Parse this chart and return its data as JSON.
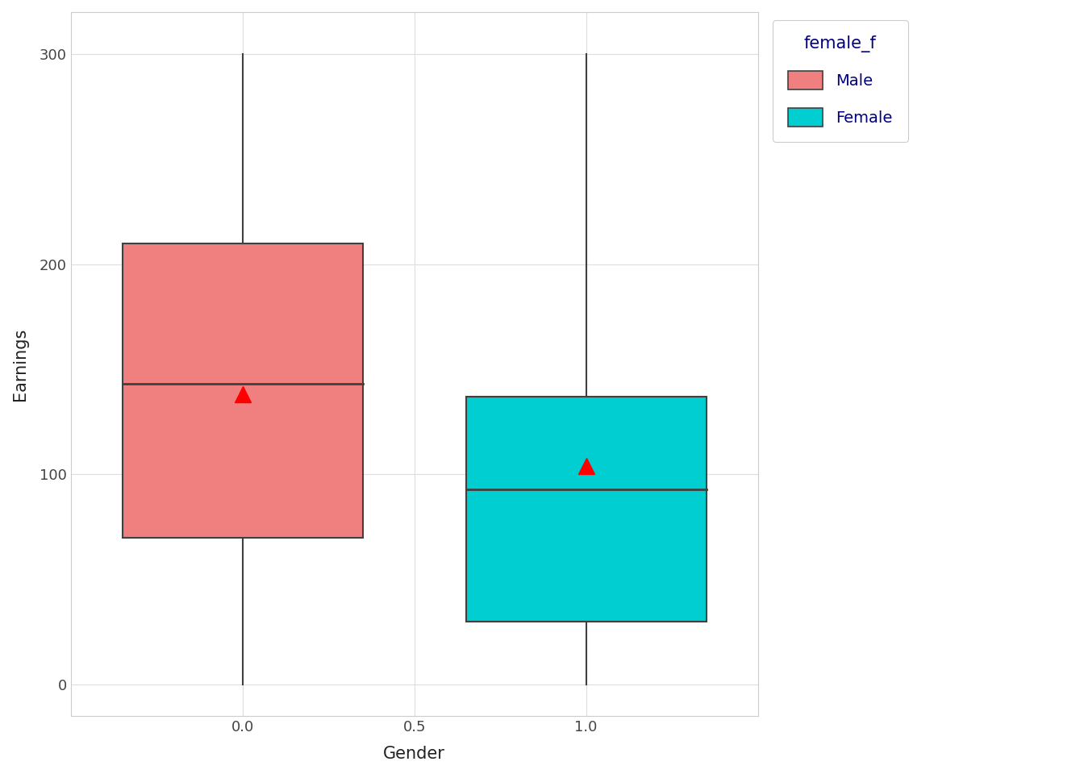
{
  "title": "",
  "xlabel": "Gender",
  "ylabel": "Earnings",
  "background_color": "#ffffff",
  "plot_background_color": "#ffffff",
  "grid_color": "#dddddd",
  "xlim": [
    -0.5,
    1.5
  ],
  "ylim": [
    -15,
    320
  ],
  "yticks": [
    0,
    100,
    200,
    300
  ],
  "xticks": [
    0.0,
    0.5,
    1.0
  ],
  "male": {
    "x": 0.0,
    "q1": 70,
    "median": 143,
    "q3": 210,
    "whisker_low": 0,
    "whisker_high": 300,
    "mean": 138,
    "color": "#F08080",
    "edge_color": "#404040"
  },
  "female": {
    "x": 1.0,
    "q1": 30,
    "median": 93,
    "q3": 137,
    "whisker_low": 0,
    "whisker_high": 300,
    "mean": 104,
    "color": "#00CED1",
    "edge_color": "#404040"
  },
  "mean_marker_color": "#ff0000",
  "mean_marker": "^",
  "mean_marker_size": 14,
  "box_width": 0.7,
  "legend_title": "female_f",
  "legend_labels": [
    "Male",
    "Female"
  ],
  "legend_colors": [
    "#F08080",
    "#00CED1"
  ],
  "legend_edge_color": "#404040",
  "axis_label_fontsize": 15,
  "tick_fontsize": 13,
  "legend_fontsize": 14,
  "legend_title_fontsize": 15,
  "legend_text_color": "#000080",
  "spine_color": "#cccccc"
}
